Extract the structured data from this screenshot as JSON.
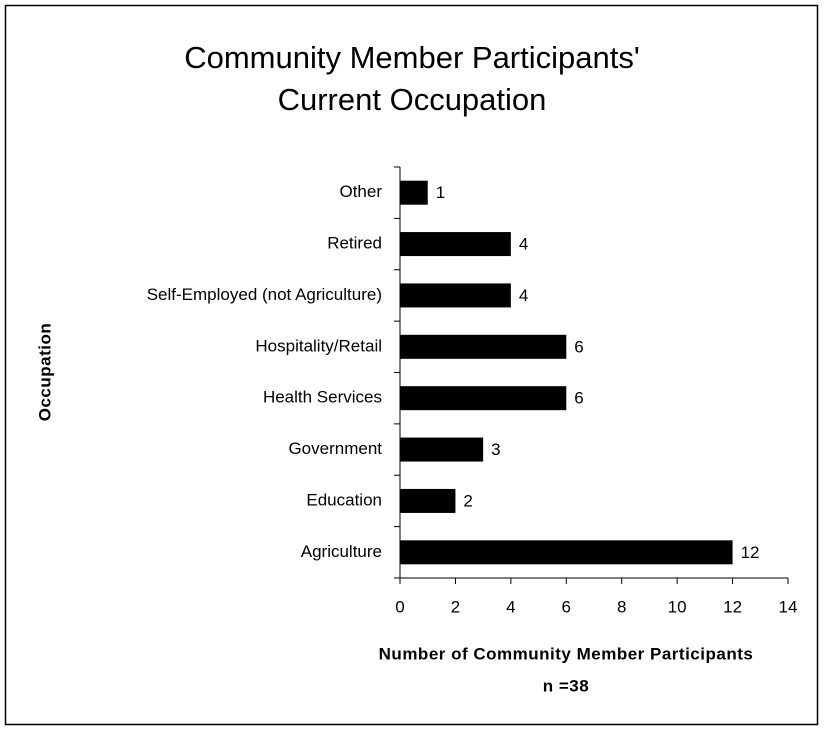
{
  "chart_data": {
    "type": "bar",
    "orientation": "horizontal",
    "title": [
      "Community Member Participants'",
      "Current Occupation"
    ],
    "categories": [
      "Other",
      "Retired",
      "Self-Employed (not Agriculture)",
      "Hospitality/Retail",
      "Health Services",
      "Government",
      "Education",
      "Agriculture"
    ],
    "values": [
      1,
      4,
      4,
      6,
      6,
      3,
      2,
      12
    ],
    "color": "#000000",
    "xlim": [
      0,
      14
    ],
    "xticks": [
      0,
      2,
      4,
      6,
      8,
      10,
      12,
      14
    ],
    "xlabel": [
      "Number of Community Member Participants",
      "n =38"
    ],
    "ylabel": "Occupation",
    "grid": false
  }
}
